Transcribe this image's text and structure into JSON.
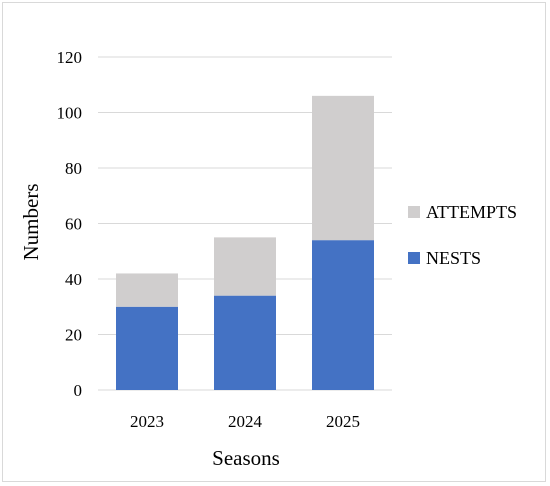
{
  "chart_data": {
    "type": "bar",
    "stacked": true,
    "categories": [
      "2023",
      "2024",
      "2025"
    ],
    "series": [
      {
        "name": "NESTS",
        "values": [
          30,
          34,
          54
        ],
        "color": "#4472c4"
      },
      {
        "name": "ATTEMPTS",
        "values": [
          12,
          21,
          52
        ],
        "color": "#d0cece"
      }
    ],
    "xlabel": "Seasons",
    "ylabel": "Numbers",
    "ylim": [
      0,
      120
    ],
    "yticks": [
      0,
      20,
      40,
      60,
      80,
      100,
      120
    ],
    "grid": true,
    "gridColor": "#d9d9d9",
    "legend_position": "right",
    "legend_order": [
      "ATTEMPTS",
      "NESTS"
    ]
  }
}
